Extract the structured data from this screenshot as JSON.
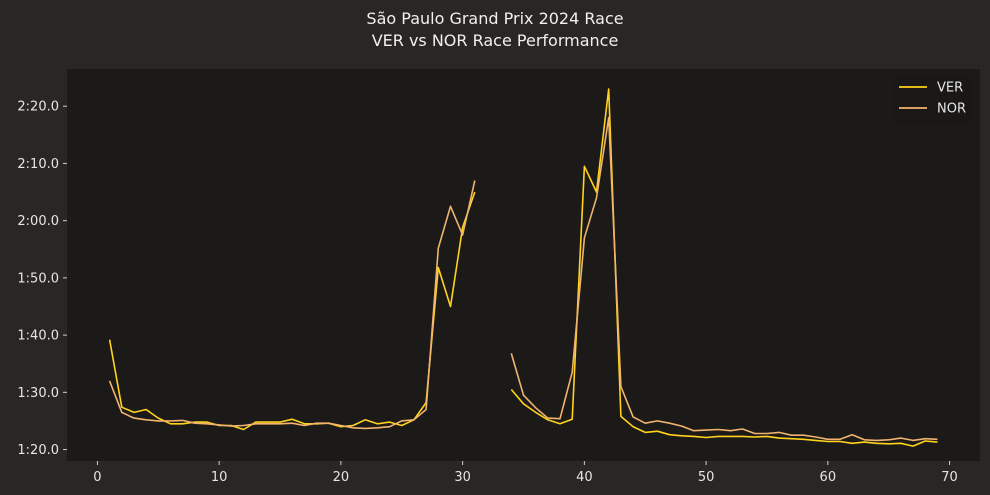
{
  "title_line1": "São Paulo Grand Prix 2024  Race",
  "title_line2": "VER vs NOR Race Performance",
  "chart_data": {
    "type": "line",
    "xlabel": "",
    "ylabel": "",
    "xlim": [
      -2.5,
      72.5
    ],
    "ylim": [
      78,
      146.5
    ],
    "xticks": [
      0,
      10,
      20,
      30,
      40,
      50,
      60,
      70
    ],
    "yticks": [
      80,
      90,
      100,
      110,
      120,
      130,
      140
    ],
    "ytick_labels": [
      "1:20.0",
      "1:30.0",
      "1:40.0",
      "1:50.0",
      "2:00.0",
      "2:10.0",
      "2:20.0"
    ],
    "grid": false,
    "legend": "top-right",
    "background": "#1c1a19",
    "series": [
      {
        "name": "VER",
        "color": "#ffd21c",
        "x": [
          1,
          2,
          3,
          4,
          5,
          6,
          7,
          8,
          9,
          10,
          11,
          12,
          13,
          14,
          15,
          16,
          17,
          18,
          19,
          20,
          21,
          22,
          23,
          24,
          25,
          26,
          27,
          28,
          29,
          30,
          31,
          null,
          34,
          35,
          36,
          37,
          38,
          39,
          40,
          41,
          42,
          43,
          44,
          45,
          46,
          47,
          48,
          49,
          50,
          51,
          52,
          53,
          54,
          55,
          56,
          57,
          58,
          59,
          60,
          61,
          62,
          63,
          64,
          65,
          66,
          67,
          68,
          69
        ],
        "y": [
          99.2,
          87.4,
          86.5,
          87.0,
          85.5,
          84.5,
          84.5,
          84.8,
          84.8,
          84.2,
          84.2,
          83.5,
          84.8,
          84.8,
          84.8,
          85.3,
          84.5,
          84.5,
          84.6,
          84.0,
          84.2,
          85.2,
          84.5,
          84.8,
          84.2,
          85.2,
          88.2,
          111.8,
          105.0,
          118.8,
          125.0,
          null,
          90.5,
          88.0,
          86.5,
          85.2,
          84.5,
          85.3,
          129.5,
          125.0,
          143.0,
          85.8,
          84.0,
          83.0,
          83.2,
          82.6,
          82.4,
          82.3,
          82.1,
          82.3,
          82.3,
          82.3,
          82.2,
          82.3,
          82.0,
          81.9,
          81.8,
          81.6,
          81.4,
          81.4,
          81.1,
          81.3,
          81.1,
          81.0,
          81.1,
          80.6,
          81.5,
          81.3
        ]
      },
      {
        "name": "NOR",
        "color": "#f0b46e",
        "x": [
          1,
          2,
          3,
          4,
          5,
          6,
          7,
          8,
          9,
          10,
          11,
          12,
          13,
          14,
          15,
          16,
          17,
          18,
          19,
          20,
          21,
          22,
          23,
          24,
          25,
          26,
          27,
          28,
          29,
          30,
          31,
          null,
          34,
          35,
          36,
          37,
          38,
          39,
          40,
          41,
          42,
          43,
          44,
          45,
          46,
          47,
          48,
          49,
          50,
          51,
          52,
          53,
          54,
          55,
          56,
          57,
          58,
          59,
          60,
          61,
          62,
          63,
          64,
          65,
          66,
          67,
          68,
          69
        ],
        "y": [
          92.0,
          86.5,
          85.5,
          85.2,
          85.0,
          85.0,
          85.1,
          84.6,
          84.5,
          84.3,
          84.1,
          84.2,
          84.5,
          84.5,
          84.5,
          84.6,
          84.2,
          84.6,
          84.6,
          84.2,
          83.8,
          83.7,
          83.8,
          84.0,
          85.0,
          85.2,
          87.0,
          115.2,
          122.5,
          117.5,
          127.0,
          null,
          96.8,
          89.5,
          87.3,
          85.5,
          85.4,
          93.5,
          117.0,
          124.0,
          138.0,
          91.0,
          85.7,
          84.6,
          85.0,
          84.6,
          84.1,
          83.3,
          83.4,
          83.5,
          83.3,
          83.6,
          82.8,
          82.8,
          83.0,
          82.5,
          82.5,
          82.2,
          81.8,
          81.8,
          82.6,
          81.7,
          81.6,
          81.7,
          82.0,
          81.6,
          81.9,
          81.8
        ]
      }
    ]
  }
}
